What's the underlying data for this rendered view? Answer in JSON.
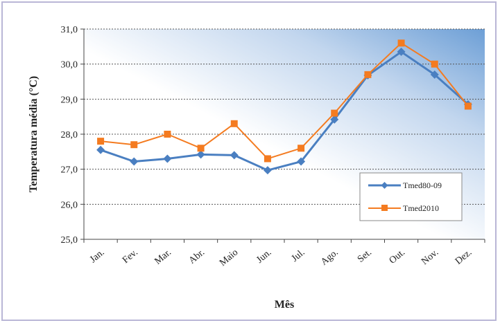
{
  "chart_data": {
    "type": "line",
    "title": "",
    "xlabel": "Mês",
    "ylabel": "Temperatura média (°C)",
    "ylim": [
      25.0,
      31.0
    ],
    "yticks": [
      "25,0",
      "26,0",
      "27,0",
      "28,0",
      "29,0",
      "30,0",
      "31,0"
    ],
    "categories": [
      "Jan.",
      "Fev.",
      "Mar.",
      "Abr.",
      "Maio",
      "Jun.",
      "Jul.",
      "Ago.",
      "Set.",
      "Out.",
      "Nov.",
      "Dez."
    ],
    "series": [
      {
        "name": "Tmed80-09",
        "color": "#4a7fc1",
        "marker": "diamond",
        "values": [
          27.55,
          27.22,
          27.3,
          27.42,
          27.4,
          26.97,
          27.22,
          28.42,
          29.68,
          30.35,
          29.7,
          28.85
        ]
      },
      {
        "name": "Tmed2010",
        "color": "#f47b20",
        "marker": "square",
        "values": [
          27.8,
          27.7,
          28.0,
          27.6,
          28.3,
          27.3,
          27.6,
          28.6,
          29.7,
          30.6,
          30.0,
          28.8
        ]
      }
    ],
    "grid": "horizontal dashed",
    "legend_position": "right"
  }
}
